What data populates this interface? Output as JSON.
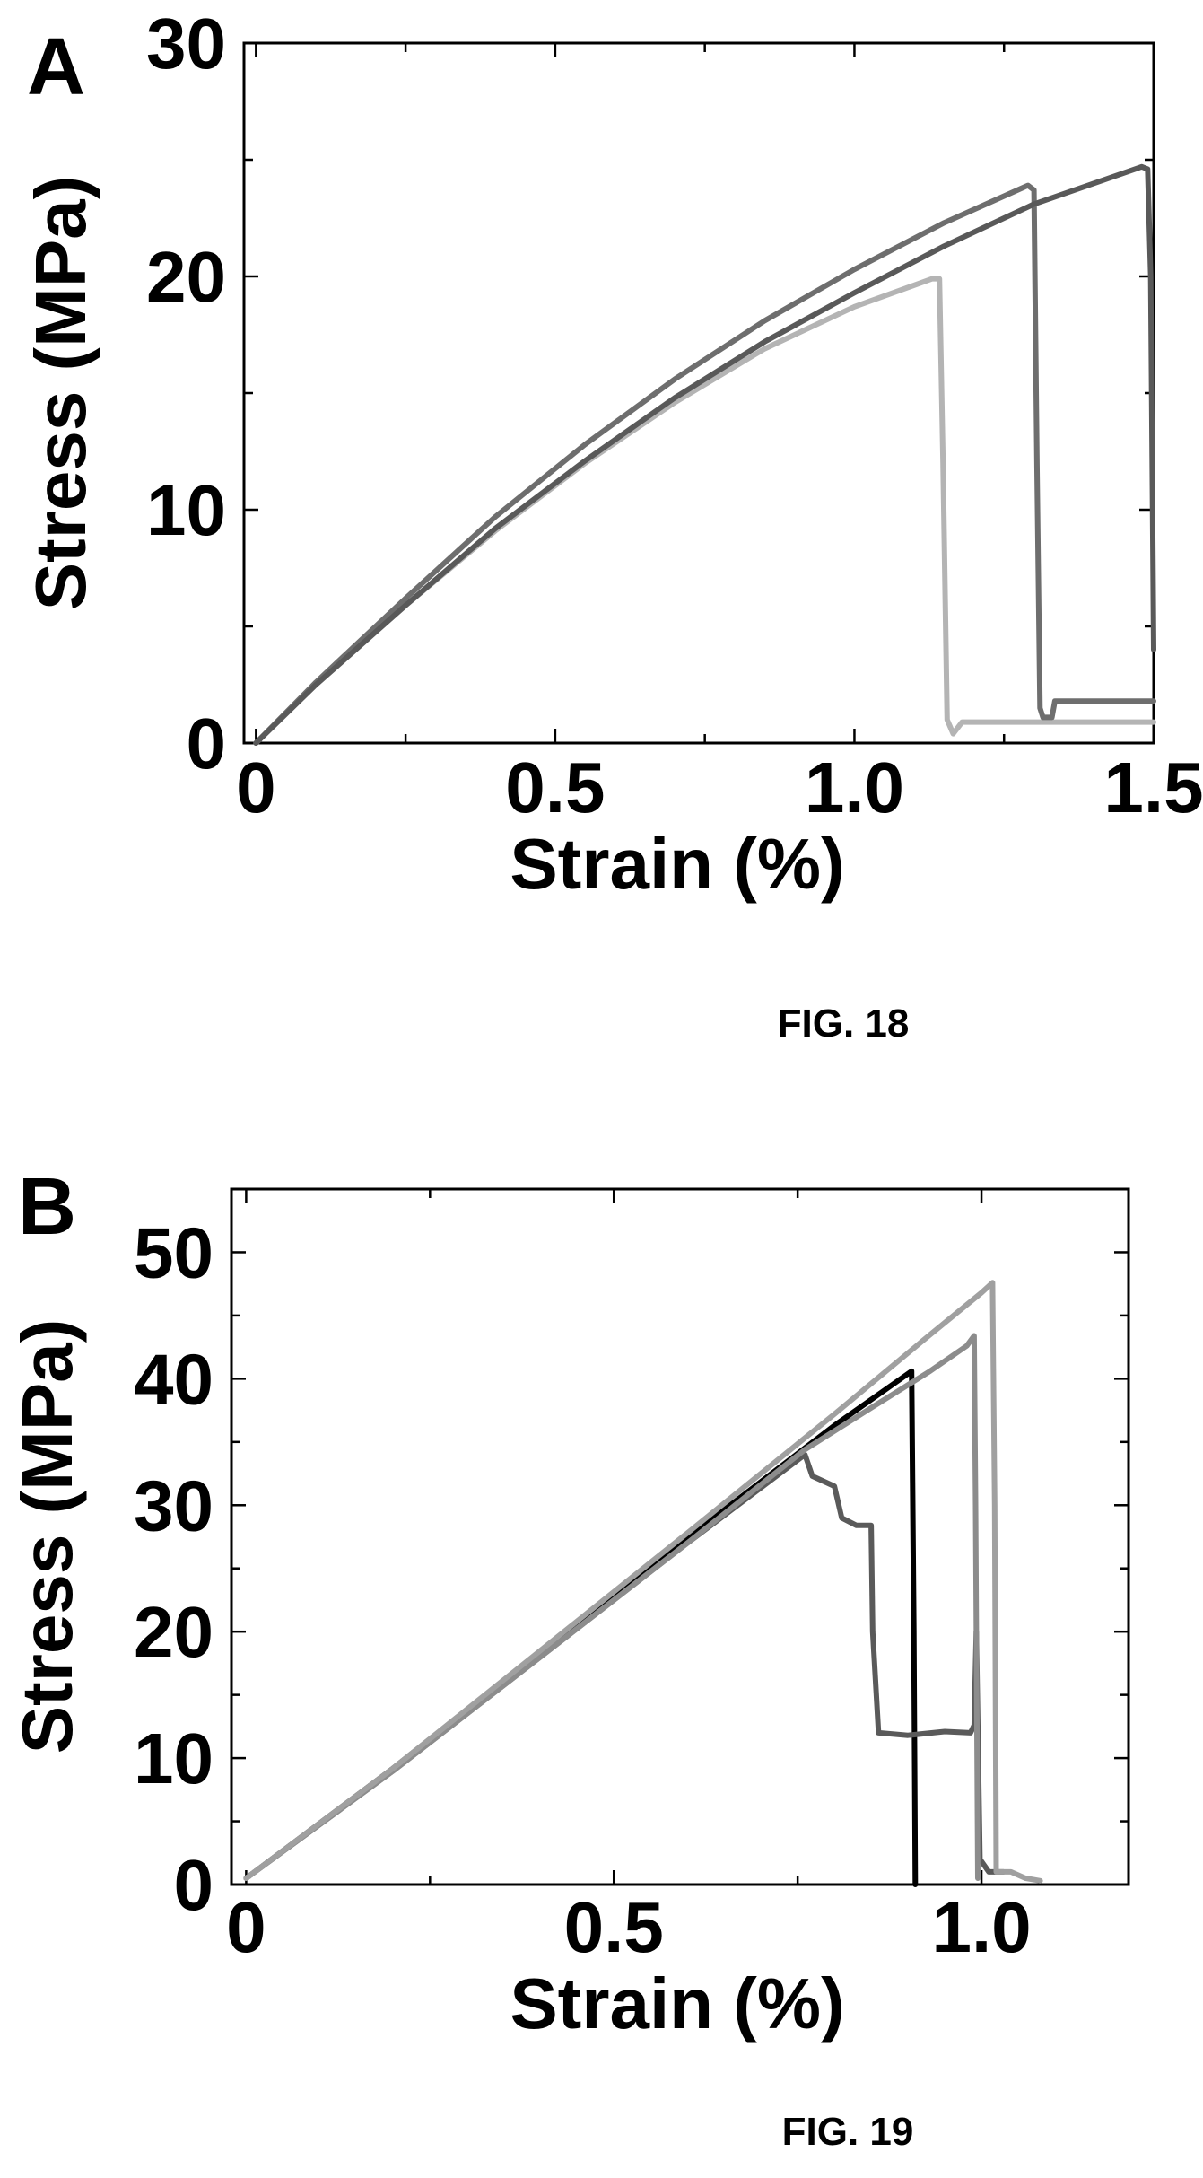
{
  "figures": [
    {
      "panel_letter": "A",
      "fig_label": "FIG. 18"
    },
    {
      "panel_letter": "B",
      "fig_label": "FIG. 19"
    }
  ],
  "chart_data": [
    {
      "type": "line",
      "panel": "A",
      "xlabel": "Strain (%)",
      "ylabel": "Stress (MPa)",
      "xlim": [
        -0.02,
        1.5
      ],
      "ylim": [
        0,
        30
      ],
      "xticks": [
        0,
        0.5,
        1.0,
        1.5
      ],
      "xtick_labels": [
        "0",
        "0.5",
        "1.0",
        "1.5"
      ],
      "yticks": [
        0,
        10,
        20,
        30
      ],
      "ytick_labels": [
        "0",
        "10",
        "20",
        "30"
      ],
      "grid": false,
      "series": [
        {
          "color": "#b4b4b4",
          "points": [
            [
              0,
              0
            ],
            [
              0.1,
              2.5
            ],
            [
              0.25,
              5.9
            ],
            [
              0.4,
              9.1
            ],
            [
              0.55,
              12.0
            ],
            [
              0.7,
              14.6
            ],
            [
              0.85,
              16.9
            ],
            [
              1.0,
              18.7
            ],
            [
              1.13,
              19.9
            ],
            [
              1.142,
              19.9
            ],
            [
              1.148,
              12.0
            ],
            [
              1.155,
              1.0
            ],
            [
              1.165,
              0.4
            ],
            [
              1.18,
              0.9
            ],
            [
              1.5,
              0.9
            ]
          ]
        },
        {
          "color": "#6e6e6e",
          "points": [
            [
              0,
              0
            ],
            [
              0.1,
              2.6
            ],
            [
              0.25,
              6.2
            ],
            [
              0.4,
              9.7
            ],
            [
              0.55,
              12.8
            ],
            [
              0.7,
              15.6
            ],
            [
              0.85,
              18.1
            ],
            [
              1.0,
              20.3
            ],
            [
              1.15,
              22.3
            ],
            [
              1.29,
              23.9
            ],
            [
              1.3,
              23.7
            ],
            [
              1.305,
              12.0
            ],
            [
              1.31,
              1.5
            ],
            [
              1.315,
              1.1
            ],
            [
              1.33,
              1.1
            ],
            [
              1.335,
              1.8
            ],
            [
              1.5,
              1.8
            ]
          ]
        },
        {
          "color": "#595959",
          "points": [
            [
              0,
              0
            ],
            [
              0.1,
              2.5
            ],
            [
              0.25,
              5.9
            ],
            [
              0.4,
              9.2
            ],
            [
              0.55,
              12.1
            ],
            [
              0.7,
              14.8
            ],
            [
              0.85,
              17.2
            ],
            [
              1.0,
              19.3
            ],
            [
              1.15,
              21.3
            ],
            [
              1.3,
              23.1
            ],
            [
              1.48,
              24.7
            ],
            [
              1.49,
              24.6
            ],
            [
              1.495,
              20.0
            ],
            [
              1.5,
              4.0
            ]
          ]
        }
      ]
    },
    {
      "type": "line",
      "panel": "B",
      "xlabel": "Strain (%)",
      "ylabel": "Stress (MPa)",
      "xlim": [
        -0.02,
        1.2
      ],
      "ylim": [
        0,
        55
      ],
      "xticks": [
        0,
        0.5,
        1.0
      ],
      "xtick_labels": [
        "0",
        "0.5",
        "1.0"
      ],
      "yticks": [
        0,
        10,
        20,
        30,
        40,
        50
      ],
      "ytick_labels": [
        "0",
        "10",
        "20",
        "30",
        "40",
        "50"
      ],
      "grid": false,
      "series": [
        {
          "color": "#000000",
          "points": [
            [
              0,
              0.5
            ],
            [
              0.2,
              9.2
            ],
            [
              0.4,
              18.4
            ],
            [
              0.6,
              27.4
            ],
            [
              0.8,
              36.3
            ],
            [
              0.905,
              40.6
            ],
            [
              0.908,
              20.0
            ],
            [
              0.91,
              0
            ]
          ]
        },
        {
          "color": "#5a5a5a",
          "points": [
            [
              0,
              0.5
            ],
            [
              0.2,
              9.0
            ],
            [
              0.4,
              18.0
            ],
            [
              0.6,
              27.0
            ],
            [
              0.76,
              34.0
            ],
            [
              0.77,
              32.3
            ],
            [
              0.8,
              31.5
            ],
            [
              0.81,
              29.0
            ],
            [
              0.83,
              28.4
            ],
            [
              0.85,
              28.4
            ],
            [
              0.852,
              20.0
            ],
            [
              0.86,
              12.0
            ],
            [
              0.9,
              11.8
            ],
            [
              0.95,
              12.1
            ],
            [
              0.985,
              12.0
            ],
            [
              0.99,
              12.6
            ],
            [
              0.993,
              20.0
            ],
            [
              0.998,
              2.0
            ],
            [
              1.01,
              1.0
            ],
            [
              1.03,
              1.0
            ]
          ]
        },
        {
          "color": "#8c8c8c",
          "points": [
            [
              0,
              0.5
            ],
            [
              0.2,
              9.0
            ],
            [
              0.4,
              18.0
            ],
            [
              0.6,
              27.0
            ],
            [
              0.76,
              34.4
            ],
            [
              0.85,
              37.7
            ],
            [
              0.93,
              40.6
            ],
            [
              0.98,
              42.6
            ],
            [
              0.99,
              43.4
            ],
            [
              0.992,
              30.0
            ],
            [
              0.995,
              0.5
            ]
          ]
        },
        {
          "color": "#a0a0a0",
          "points": [
            [
              0,
              0.5
            ],
            [
              0.2,
              9.2
            ],
            [
              0.4,
              18.5
            ],
            [
              0.6,
              27.8
            ],
            [
              0.8,
              37.2
            ],
            [
              0.92,
              43.0
            ],
            [
              1.0,
              46.8
            ],
            [
              1.015,
              47.6
            ],
            [
              1.018,
              30.0
            ],
            [
              1.02,
              1.0
            ],
            [
              1.04,
              1.0
            ],
            [
              1.06,
              0.5
            ],
            [
              1.08,
              0.3
            ]
          ]
        }
      ]
    }
  ]
}
